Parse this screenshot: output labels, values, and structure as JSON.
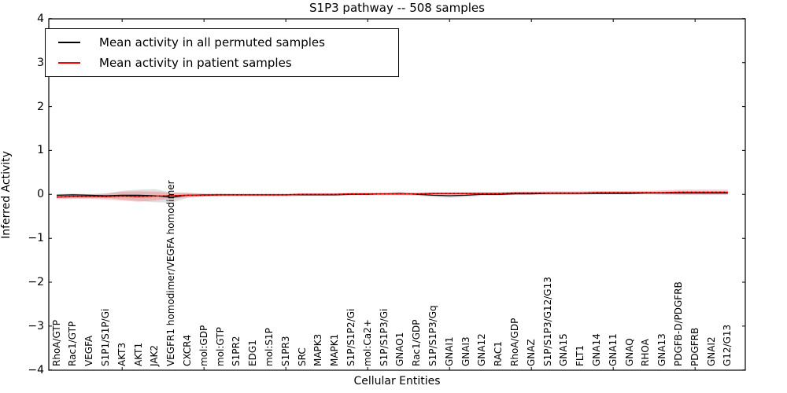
{
  "chart_data": {
    "type": "line",
    "title": "S1P3 pathway -- 508 samples",
    "xlabel": "Cellular Entities",
    "ylabel": "Inferred Activity",
    "ylim": [
      -4,
      4
    ],
    "ytick_labels": [
      "4",
      "3",
      "2",
      "1",
      "0",
      "−1",
      "−2",
      "−3",
      "−4"
    ],
    "ytick_values": [
      4,
      3,
      2,
      1,
      0,
      -1,
      -2,
      -3,
      -4
    ],
    "xtick_indices": [
      4,
      9,
      14,
      19,
      24,
      29,
      34,
      39
    ],
    "grid": false,
    "legend_position": "upper left",
    "categories": [
      "RhoA/GTP",
      "Rac1/GTP",
      "VEGFA",
      "S1P1/S1P/Gi",
      "AKT3",
      "AKT1",
      "JAK2",
      "VEGFR1 homodimer/VEGFA homodimer",
      "CXCR4",
      "mol:GDP",
      "mol:GTP",
      "S1PR2",
      "EDG1",
      "mol:S1P",
      "S1PR3",
      "SRC",
      "MAPK3",
      "MAPK1",
      "S1P/S1P2/Gi",
      "mol:Ca2+",
      "S1P/S1P3/Gi",
      "GNAO1",
      "Rac1/GDP",
      "S1P/S1P3/Gq",
      "GNAI1",
      "GNAI3",
      "GNA12",
      "RAC1",
      "RhoA/GDP",
      "GNAZ",
      "S1P/S1P3/G12/G13",
      "GNA15",
      "FLT1",
      "GNA14",
      "GNA11",
      "GNAQ",
      "RHOA",
      "GNA13",
      "PDGFB-D/PDGFRB",
      "PDGFRB",
      "GNAI2",
      "G12/G13"
    ],
    "series": [
      {
        "name": "Mean activity in all permuted samples",
        "color": "#000000",
        "band_color": "rgba(0,0,0,0.12)",
        "values": [
          -0.02,
          -0.01,
          -0.02,
          -0.03,
          -0.02,
          -0.02,
          -0.03,
          -0.07,
          -0.02,
          -0.01,
          -0.01,
          -0.01,
          -0.01,
          -0.01,
          -0.01,
          -0.01,
          -0.01,
          -0.01,
          0.0,
          0.0,
          0.01,
          0.02,
          0.0,
          -0.02,
          -0.03,
          -0.02,
          0.0,
          0.0,
          0.01,
          0.01,
          0.02,
          0.02,
          0.02,
          0.02,
          0.02,
          0.02,
          0.03,
          0.03,
          0.03,
          0.03,
          0.03,
          0.03
        ],
        "band_halfwidth": [
          0.03,
          0.03,
          0.03,
          0.05,
          0.1,
          0.13,
          0.15,
          0.12,
          0.06,
          0.03,
          0.03,
          0.02,
          0.02,
          0.02,
          0.02,
          0.02,
          0.02,
          0.02,
          0.02,
          0.02,
          0.03,
          0.04,
          0.03,
          0.04,
          0.05,
          0.04,
          0.03,
          0.03,
          0.02,
          0.02,
          0.02,
          0.02,
          0.02,
          0.02,
          0.02,
          0.02,
          0.02,
          0.02,
          0.03,
          0.03,
          0.03,
          0.03
        ]
      },
      {
        "name": "Mean activity in patient samples",
        "color": "#ff0000",
        "band_color": "rgba(255,0,0,0.18)",
        "values": [
          -0.06,
          -0.05,
          -0.05,
          -0.05,
          -0.04,
          -0.05,
          -0.04,
          -0.03,
          -0.02,
          -0.02,
          -0.01,
          -0.01,
          -0.01,
          -0.01,
          -0.01,
          0.0,
          0.0,
          0.0,
          0.01,
          0.01,
          0.01,
          0.01,
          0.01,
          0.02,
          0.02,
          0.02,
          0.02,
          0.02,
          0.03,
          0.03,
          0.03,
          0.03,
          0.03,
          0.04,
          0.04,
          0.04,
          0.04,
          0.04,
          0.05,
          0.05,
          0.05,
          0.05
        ],
        "band_halfwidth": [
          0.05,
          0.05,
          0.05,
          0.07,
          0.1,
          0.12,
          0.1,
          0.07,
          0.05,
          0.03,
          0.03,
          0.03,
          0.03,
          0.03,
          0.03,
          0.03,
          0.03,
          0.03,
          0.03,
          0.03,
          0.03,
          0.03,
          0.03,
          0.03,
          0.03,
          0.03,
          0.03,
          0.03,
          0.03,
          0.03,
          0.04,
          0.04,
          0.04,
          0.04,
          0.04,
          0.04,
          0.04,
          0.05,
          0.06,
          0.06,
          0.06,
          0.06
        ]
      }
    ]
  }
}
